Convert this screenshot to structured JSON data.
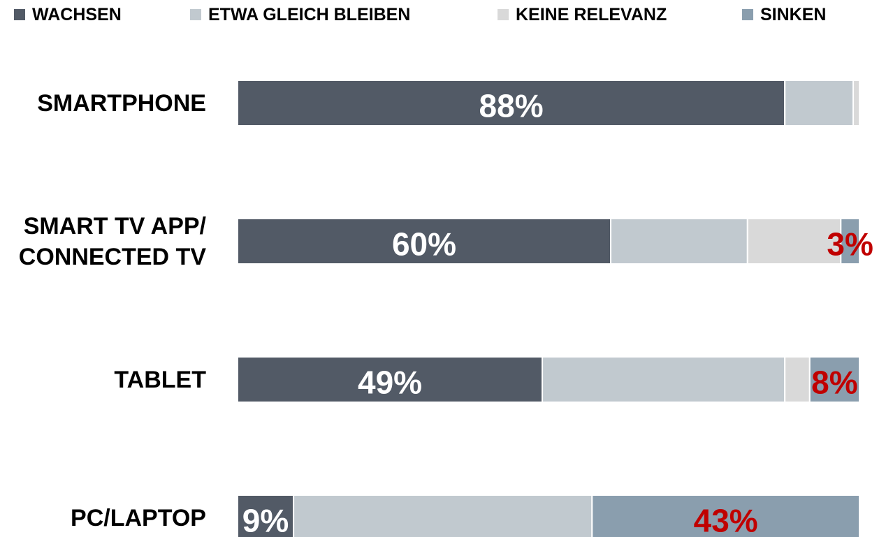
{
  "chart_data": {
    "type": "stacked_barh",
    "categories": [
      "SMARTPHONE",
      "SMART TV APP/\nCONNECTED TV",
      "TABLET",
      "PC/LAPTOP"
    ],
    "xlim": [
      0,
      100
    ],
    "legend": "top",
    "series": [
      {
        "name": "WACHSEN",
        "color": "#525a66",
        "label_color": "#ffffff",
        "values": [
          88,
          60,
          49,
          9
        ],
        "value_labels": [
          "88%",
          "60%",
          "49%",
          "9%"
        ]
      },
      {
        "name": "ETWA GLEICH BLEIBEN",
        "color": "#c1c9cf",
        "values": [
          11,
          22,
          39,
          48
        ]
      },
      {
        "name": "KEINE RELEVANZ",
        "color": "#d9d9d9",
        "values": [
          1,
          15,
          4,
          0
        ]
      },
      {
        "name": "SINKEN",
        "color": "#8a9eae",
        "label_color": "#c00000",
        "values": [
          0,
          3,
          8,
          43
        ],
        "value_labels": [
          null,
          "3%",
          "8%",
          "43%"
        ]
      }
    ]
  }
}
